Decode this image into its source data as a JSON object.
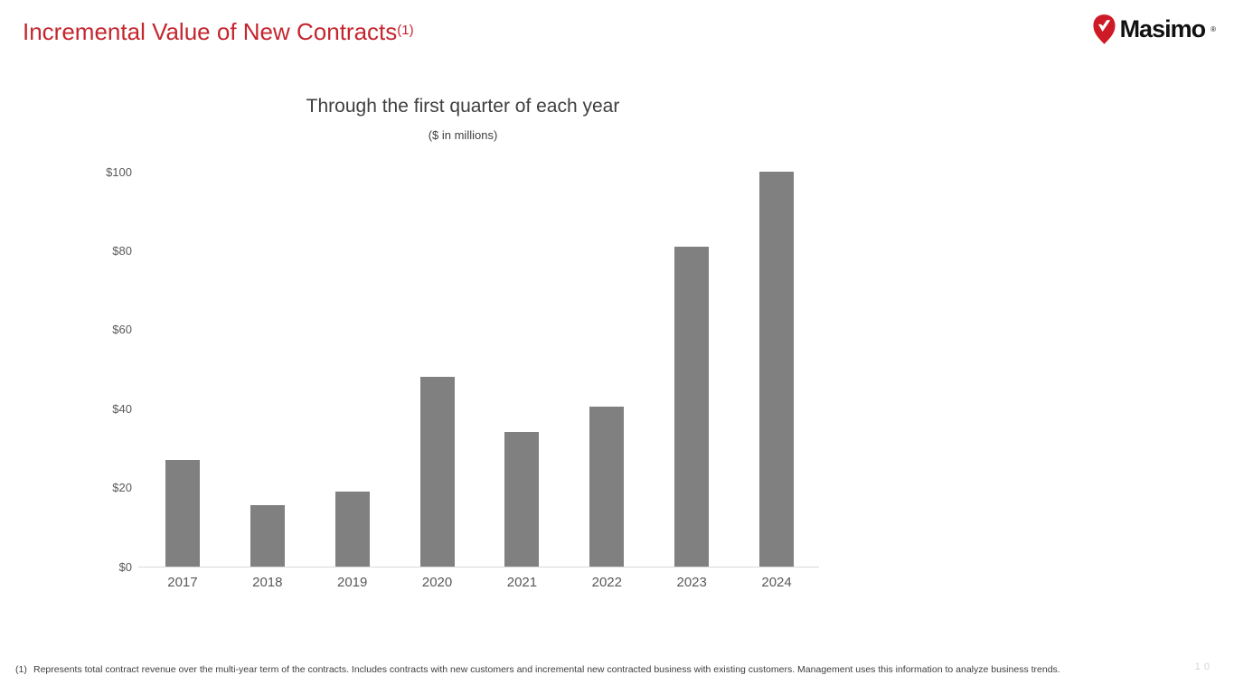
{
  "slide": {
    "title": "Incremental Value of New Contracts",
    "title_footnote_ref": "(1)",
    "page_number": "10"
  },
  "logo": {
    "brand": "Masimo",
    "registered_mark": "®",
    "icon": "masimo-drop-check-icon",
    "brand_red": "#CE1A26",
    "text_color": "#111111"
  },
  "chart_data": {
    "type": "bar",
    "title": "Through the first quarter of each year",
    "subtitle": "($ in millions)",
    "categories": [
      "2017",
      "2018",
      "2019",
      "2020",
      "2021",
      "2022",
      "2023",
      "2024"
    ],
    "values": [
      27,
      15.5,
      19,
      48,
      34,
      40.5,
      81,
      100
    ],
    "units": "USD millions",
    "xlabel": "",
    "ylabel": "",
    "ylim": [
      0,
      100
    ],
    "y_ticks": [
      {
        "label": "$100",
        "value": 100
      },
      {
        "label": "$80",
        "value": 80
      },
      {
        "label": "$60",
        "value": 60
      },
      {
        "label": "$40",
        "value": 40
      },
      {
        "label": "$20",
        "value": 20
      },
      {
        "label": "$0",
        "value": 0
      }
    ],
    "grid": false,
    "legend": "none",
    "bar_color": "#808080",
    "axis_line_color": "#d9d9d9",
    "tick_label_color": "#595959"
  },
  "footnote": {
    "marker": "(1)",
    "text": "Represents total contract revenue over the multi-year term of the contracts.  Includes contracts with new customers and incremental new contracted business with existing customers. Management uses this information to analyze business trends."
  },
  "colors": {
    "title_red": "#C4262E",
    "chart_title_gray": "#3f3f3f",
    "page_number_gray": "#d4d4d4"
  }
}
